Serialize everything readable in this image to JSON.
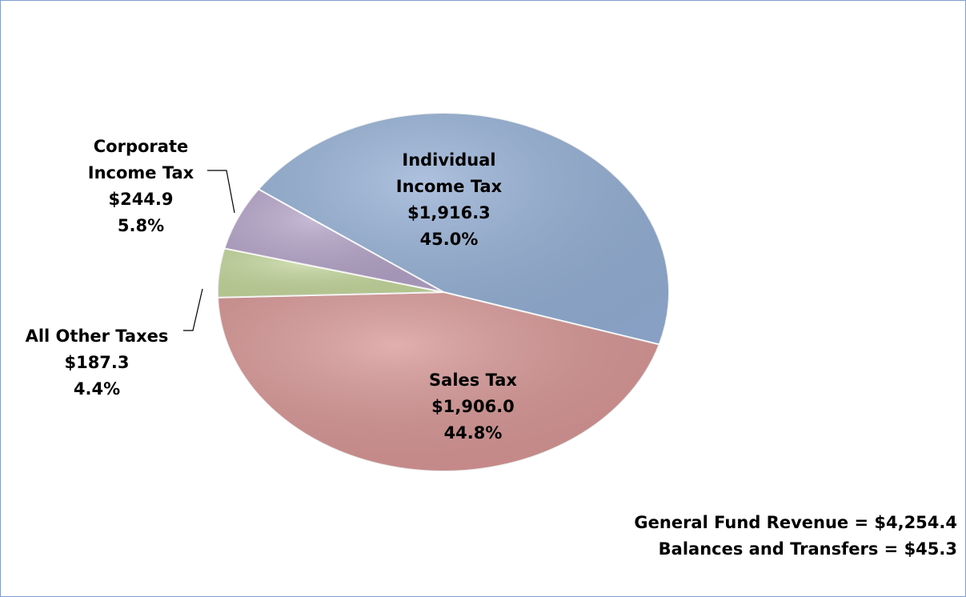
{
  "chart_data": {
    "type": "pie",
    "categories": [
      "Individual Income Tax",
      "Sales Tax",
      "All Other Taxes",
      "Corporate Income Tax"
    ],
    "values": [
      45.0,
      44.8,
      4.4,
      5.8
    ],
    "value_labels": [
      "45.0%",
      "44.8%",
      "4.4%",
      "5.8%"
    ],
    "amounts": [
      1916.3,
      1906.0,
      187.3,
      244.9
    ],
    "amount_labels": [
      "$1,916.3",
      "$1,906.0",
      "$187.3",
      "$244.9"
    ],
    "colors": [
      "#93aed4",
      "#d69594",
      "#c3d69b",
      "#b3a2c7"
    ],
    "notes": [
      "General Fund Revenue = $4,254.4",
      "Balances and Transfers = $45.3"
    ]
  }
}
